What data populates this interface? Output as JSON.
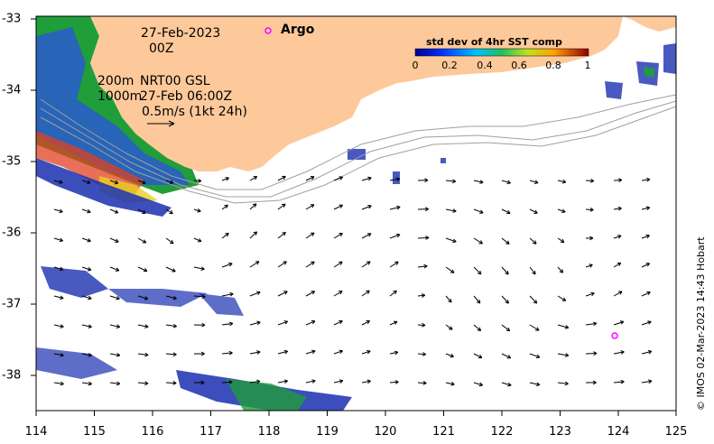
{
  "date_label": "27-Feb-2023",
  "hour_label": "00Z",
  "depth_line_1": "200m",
  "depth_line_2": "1000m",
  "model_label": "NRT00 GSL",
  "model_time": "27-Feb 06:00Z",
  "vector_scale_label": "0.5m/s (1kt 24h)",
  "argo_label": "Argo",
  "colorbar": {
    "title": "std dev of 4hr SST comp",
    "ticks": [
      "0",
      "0.2",
      "0.4",
      "0.6",
      "0.8",
      "1"
    ]
  },
  "credit": "© IMOS 02-Mar-2023 14:43 Hobart",
  "axes": {
    "x_ticks": [
      "114",
      "115",
      "116",
      "117",
      "118",
      "119",
      "120",
      "121",
      "122",
      "123",
      "124",
      "125"
    ],
    "y_ticks": [
      "-33",
      "-34",
      "-35",
      "-36",
      "-37",
      "-38"
    ],
    "x_range": [
      114,
      125
    ],
    "y_range": [
      -38.5,
      -33
    ]
  },
  "colors": {
    "land": "#fdc99a",
    "argo_marker": "#ff00ff",
    "contour": "#a0a0a0",
    "vector": "#000000"
  },
  "argo_floats": [
    {
      "lon": 118.0,
      "lat": -33.2
    },
    {
      "lon": 123.95,
      "lat": -37.4
    }
  ]
}
